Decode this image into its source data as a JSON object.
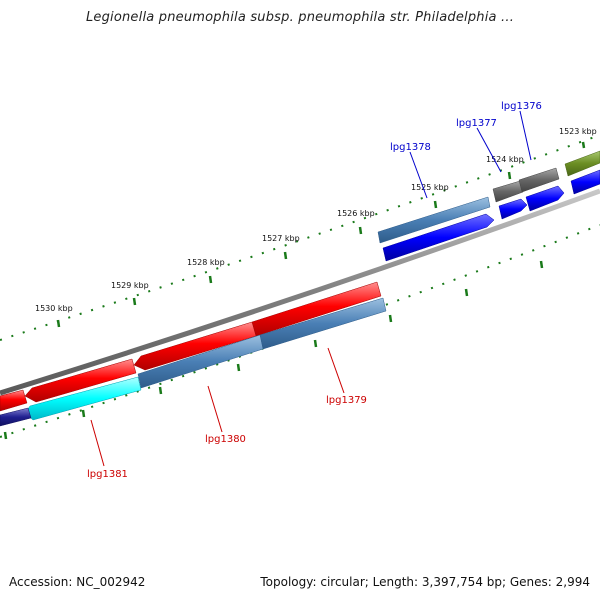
{
  "title": "Legionella pneumophila subsp. pneumophila str. Philadelphia ...",
  "footer": {
    "accession": "Accession: NC_002942",
    "summary": "Topology: circular; Length: 3,397,754 bp; Genes: 2,994"
  },
  "colors": {
    "backbone": "#808080",
    "tick": "#1a7a1a",
    "label_forward": "#0000cc",
    "label_reverse": "#cc0000"
  },
  "ticks": [
    {
      "label": "1523 kbp"
    },
    {
      "label": "1524 kbp"
    },
    {
      "label": "1525 kbp"
    },
    {
      "label": "1526 kbp"
    },
    {
      "label": "1527 kbp"
    },
    {
      "label": "1528 kbp"
    },
    {
      "label": "1529 kbp"
    },
    {
      "label": "1530 kbp"
    }
  ],
  "gene_labels": [
    {
      "id": "lpg1376",
      "text": "lpg1376",
      "strand": "forward"
    },
    {
      "id": "lpg1377",
      "text": "lpg1377",
      "strand": "forward"
    },
    {
      "id": "lpg1378",
      "text": "lpg1378",
      "strand": "forward"
    },
    {
      "id": "lpg1379",
      "text": "lpg1379",
      "strand": "reverse"
    },
    {
      "id": "lpg1380",
      "text": "lpg1380",
      "strand": "reverse"
    },
    {
      "id": "lpg1381",
      "text": "lpg1381",
      "strand": "reverse"
    }
  ]
}
